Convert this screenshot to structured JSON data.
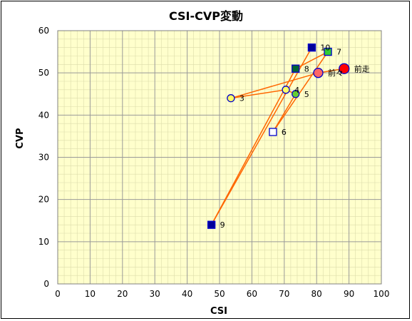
{
  "chart_data": {
    "type": "scatter",
    "title": "CSI-CVP変動",
    "xlabel": "CSI",
    "ylabel": "CVP",
    "xlim": [
      0,
      100
    ],
    "ylim": [
      0,
      60
    ],
    "x_ticks": [
      0,
      10,
      20,
      30,
      40,
      50,
      60,
      70,
      80,
      90,
      100
    ],
    "y_ticks": [
      0,
      10,
      20,
      30,
      40,
      50,
      60
    ],
    "grid": true,
    "plot_background": "#ffffcc",
    "major_grid_color": "#999999",
    "minor_grid_color": "#dcdcaa",
    "line_color": "#ff6600",
    "points": [
      {
        "label": "前走",
        "x": 88.5,
        "y": 51,
        "marker": "circle-large",
        "fill": "#ff0000",
        "stroke": "#0000cc"
      },
      {
        "label": "前々",
        "x": 80.5,
        "y": 50,
        "marker": "circle",
        "fill": "#ff6666",
        "stroke": "#0000cc"
      },
      {
        "label": "3",
        "x": 53.5,
        "y": 44,
        "marker": "circle",
        "fill": "#ffff66",
        "stroke": "#0000cc"
      },
      {
        "label": "4",
        "x": 70.5,
        "y": 46,
        "marker": "circle",
        "fill": "#ffff66",
        "stroke": "#0000cc"
      },
      {
        "label": "5",
        "x": 73.5,
        "y": 45,
        "marker": "circle",
        "fill": "#66cc33",
        "stroke": "#0000cc"
      },
      {
        "label": "6",
        "x": 66.5,
        "y": 36,
        "marker": "square",
        "fill": "#ffffff",
        "stroke": "#0000cc"
      },
      {
        "label": "7",
        "x": 83.5,
        "y": 55,
        "marker": "square",
        "fill": "#33cc33",
        "stroke": "#0000cc"
      },
      {
        "label": "8",
        "x": 73.5,
        "y": 51,
        "marker": "square",
        "fill": "#006633",
        "stroke": "#0000cc"
      },
      {
        "label": "9",
        "x": 47.5,
        "y": 14,
        "marker": "square",
        "fill": "#000099",
        "stroke": "#0000cc"
      },
      {
        "label": "10",
        "x": 78.5,
        "y": 56,
        "marker": "square",
        "fill": "#000099",
        "stroke": "#0000cc"
      }
    ],
    "connections": [
      [
        "前走",
        "前々"
      ],
      [
        "前々",
        "3"
      ],
      [
        "3",
        "4"
      ],
      [
        "4",
        "5"
      ],
      [
        "5",
        "6"
      ],
      [
        "6",
        "7"
      ],
      [
        "7",
        "8"
      ],
      [
        "8",
        "9"
      ],
      [
        "9",
        "10"
      ]
    ]
  }
}
